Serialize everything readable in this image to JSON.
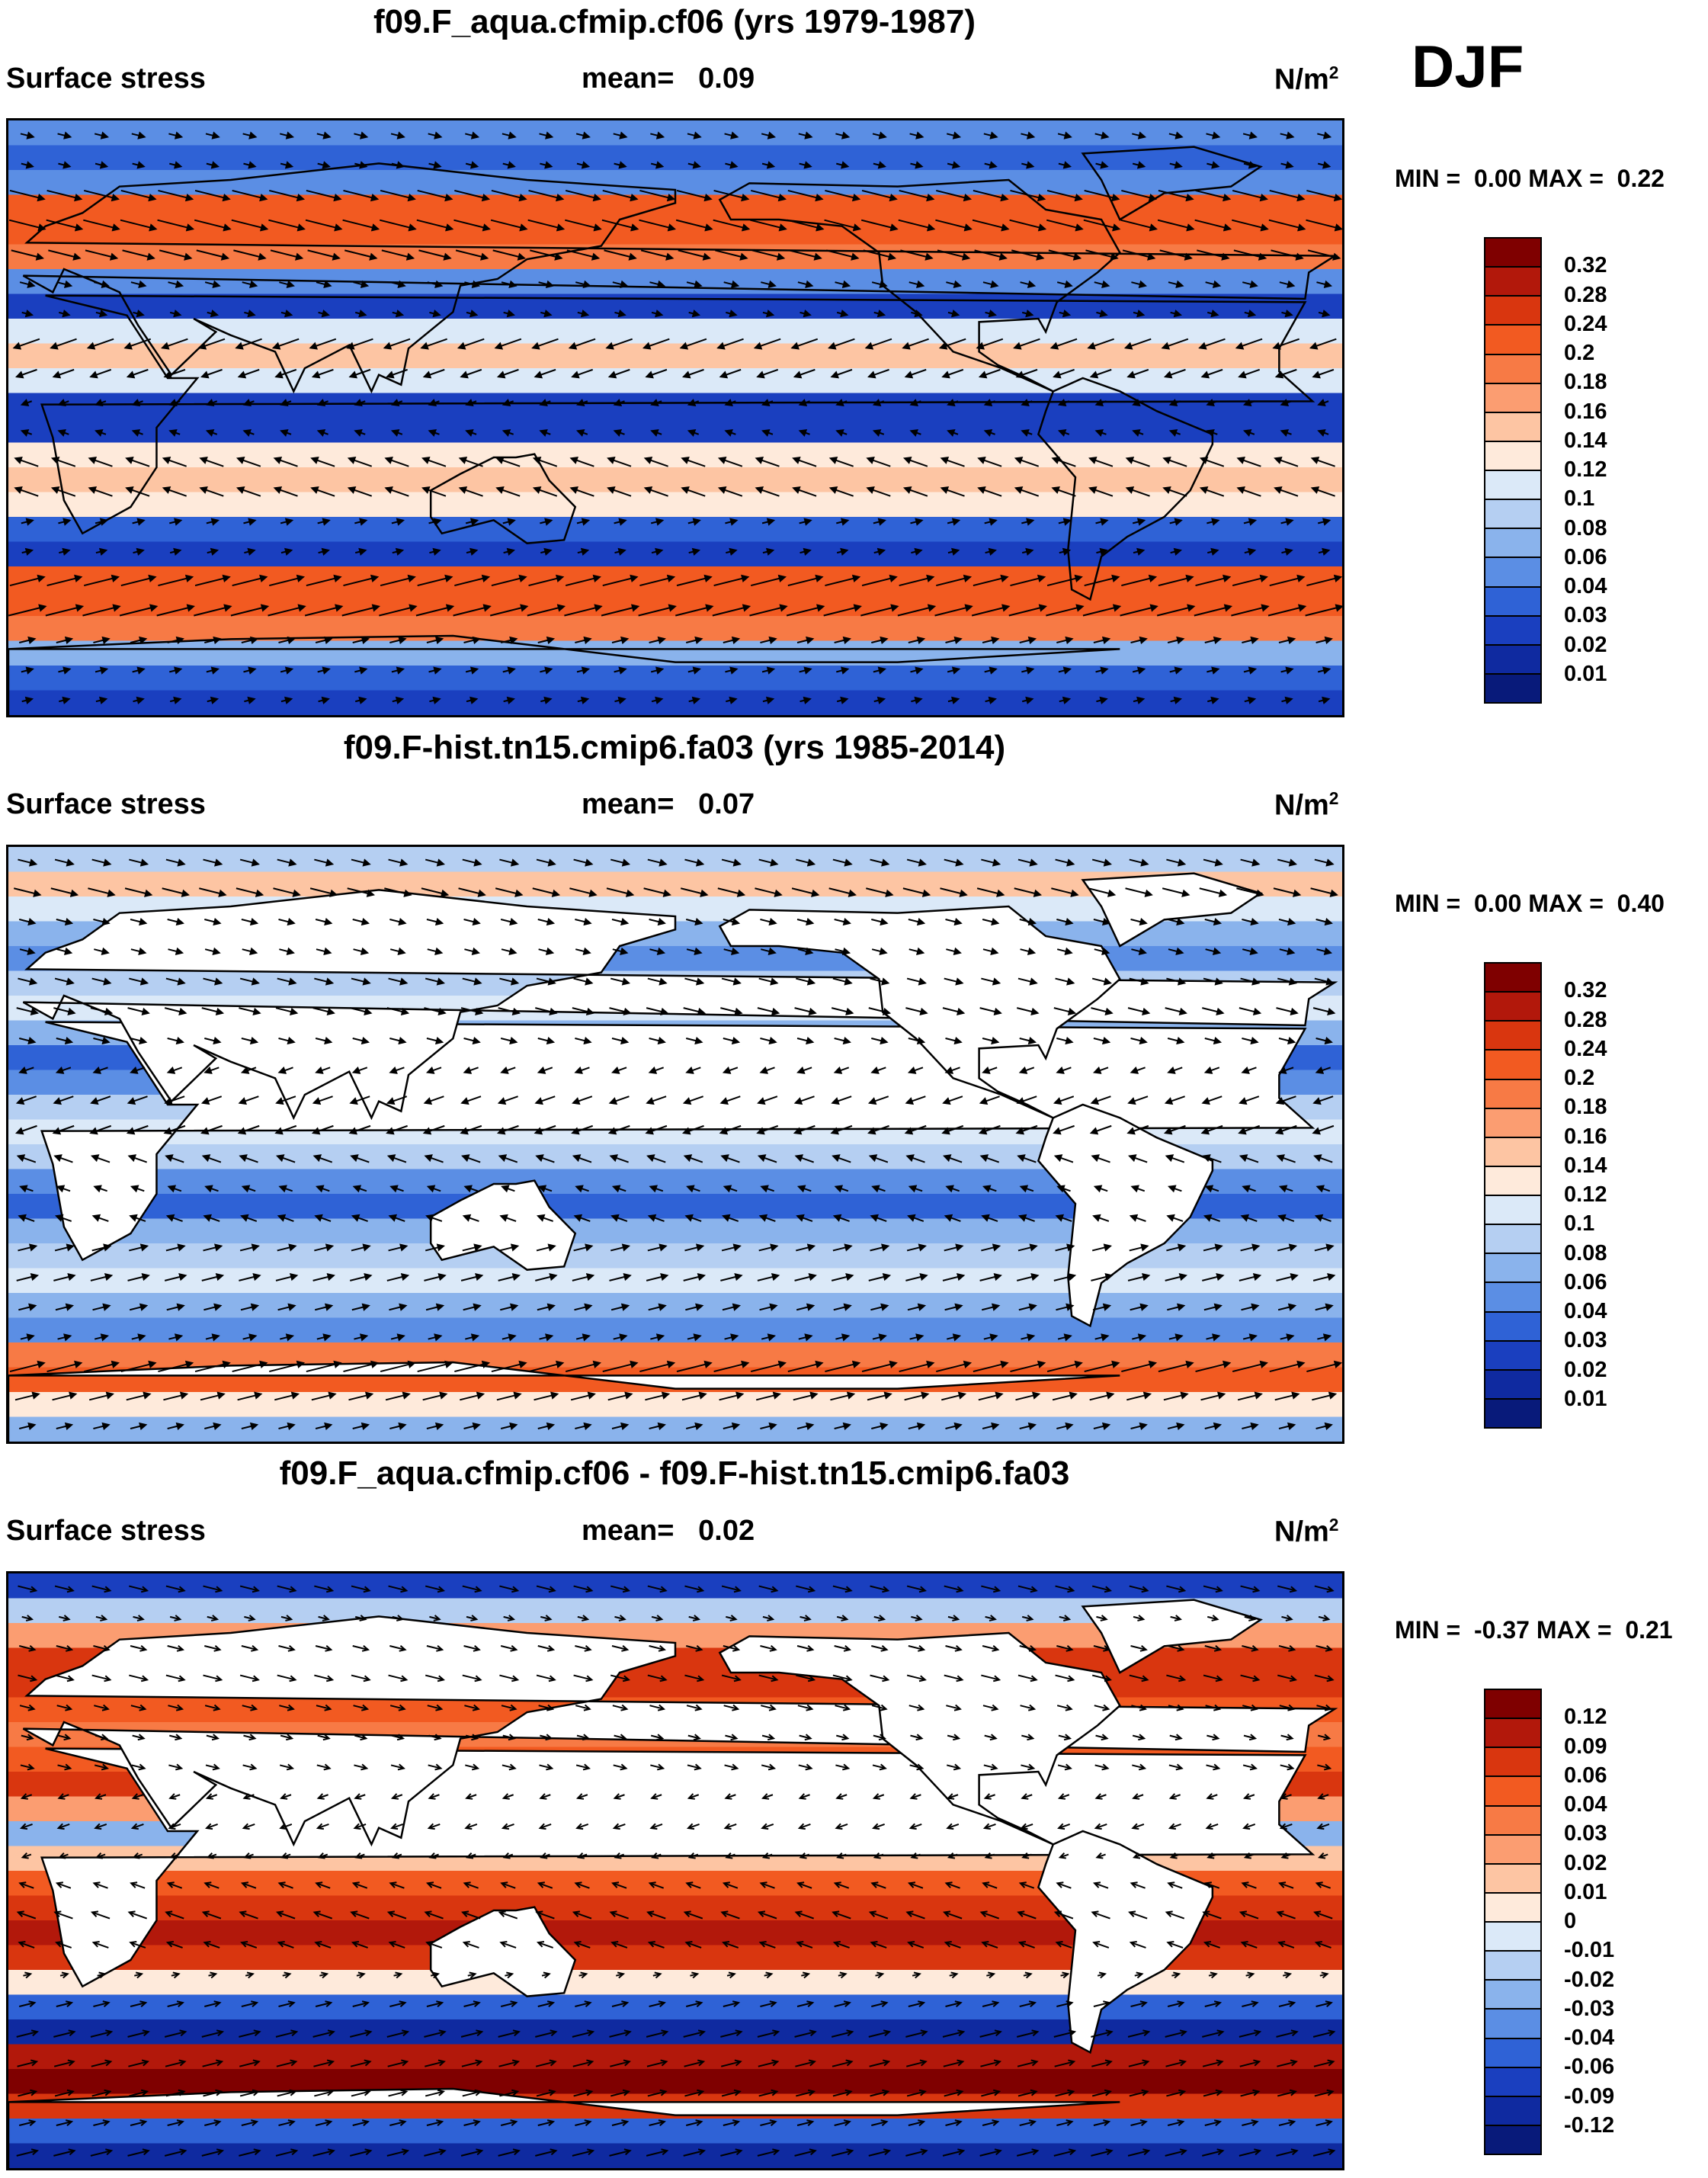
{
  "season": "DJF",
  "panels": [
    {
      "title": "f09.F_aqua.cfmip.cf06 (yrs 1979-1987)",
      "variable": "Surface stress",
      "mean_label": "mean=",
      "mean_value": "0.09",
      "units_base": "N/m",
      "units_exp": "2",
      "min_label": "MIN =",
      "min_value": "0.00",
      "max_label": "MAX =",
      "max_value": "0.22",
      "colorbar_levels": [
        "0.32",
        "0.28",
        "0.24",
        "0.2",
        "0.18",
        "0.16",
        "0.14",
        "0.12",
        "0.1",
        "0.08",
        "0.06",
        "0.04",
        "0.03",
        "0.02",
        "0.01"
      ],
      "colorbar_colors": [
        "#7f0000",
        "#b2180b",
        "#d9360f",
        "#f25a21",
        "#f77a45",
        "#fb9d71",
        "#fdc5a3",
        "#feeadb",
        "#dbe9f8",
        "#b5cff2",
        "#8ab3ec",
        "#5b8ee4",
        "#2f62d6",
        "#1a3fbf",
        "#0f2aa0",
        "#081a7a"
      ],
      "map_type": "aquaplanet",
      "arrow_style": "filled",
      "zonal_profile": [
        0.04,
        0.03,
        0.05,
        0.2,
        0.21,
        0.18,
        0.05,
        0.02,
        0.1,
        0.14,
        0.1,
        0.02,
        0.02,
        0.12,
        0.15,
        0.12,
        0.03,
        0.02,
        0.2,
        0.22,
        0.19,
        0.06,
        0.03,
        0.02
      ]
    },
    {
      "title": "f09.F-hist.tn15.cmip6.fa03 (yrs 1985-2014)",
      "variable": "Surface stress",
      "mean_label": "mean=",
      "mean_value": "0.07",
      "units_base": "N/m",
      "units_exp": "2",
      "min_label": "MIN =",
      "min_value": "0.00",
      "max_label": "MAX =",
      "max_value": "0.40",
      "colorbar_levels": [
        "0.32",
        "0.28",
        "0.24",
        "0.2",
        "0.18",
        "0.16",
        "0.14",
        "0.12",
        "0.1",
        "0.08",
        "0.06",
        "0.04",
        "0.03",
        "0.02",
        "0.01"
      ],
      "colorbar_colors": [
        "#7f0000",
        "#b2180b",
        "#d9360f",
        "#f25a21",
        "#f77a45",
        "#fb9d71",
        "#fdc5a3",
        "#feeadb",
        "#dbe9f8",
        "#b5cff2",
        "#8ab3ec",
        "#5b8ee4",
        "#2f62d6",
        "#1a3fbf",
        "#0f2aa0",
        "#081a7a"
      ],
      "map_type": "realistic",
      "arrow_style": "filled",
      "zonal_profile": [
        0.08,
        0.14,
        0.1,
        0.06,
        0.05,
        0.08,
        0.1,
        0.06,
        0.03,
        0.05,
        0.09,
        0.1,
        0.08,
        0.04,
        0.03,
        0.06,
        0.08,
        0.1,
        0.07,
        0.04,
        0.18,
        0.2,
        0.12,
        0.06
      ]
    },
    {
      "title": "f09.F_aqua.cfmip.cf06 - f09.F-hist.tn15.cmip6.fa03",
      "variable": "Surface stress",
      "mean_label": "mean=",
      "mean_value": "0.02",
      "units_base": "N/m",
      "units_exp": "2",
      "min_label": "MIN =",
      "min_value": "-0.37",
      "max_label": "MAX =",
      "max_value": "0.21",
      "colorbar_levels": [
        "0.12",
        "0.09",
        "0.06",
        "0.04",
        "0.03",
        "0.02",
        "0.01",
        "0",
        "-0.01",
        "-0.02",
        "-0.03",
        "-0.04",
        "-0.06",
        "-0.09",
        "-0.12"
      ],
      "colorbar_colors": [
        "#7f0000",
        "#b2180b",
        "#d9360f",
        "#f25a21",
        "#f77a45",
        "#fb9d71",
        "#fdc5a3",
        "#feeadb",
        "#dbe9f8",
        "#b5cff2",
        "#8ab3ec",
        "#5b8ee4",
        "#2f62d6",
        "#1a3fbf",
        "#0f2aa0",
        "#081a7a"
      ],
      "map_type": "realistic",
      "arrow_style": "open",
      "zonal_profile": [
        -0.08,
        -0.02,
        0.02,
        0.06,
        0.08,
        0.05,
        0.03,
        0.04,
        0.06,
        0.02,
        -0.03,
        0.01,
        0.05,
        0.08,
        0.1,
        0.06,
        0.0,
        -0.06,
        -0.1,
        0.09,
        0.12,
        0.08,
        -0.06,
        -0.1
      ]
    }
  ]
}
